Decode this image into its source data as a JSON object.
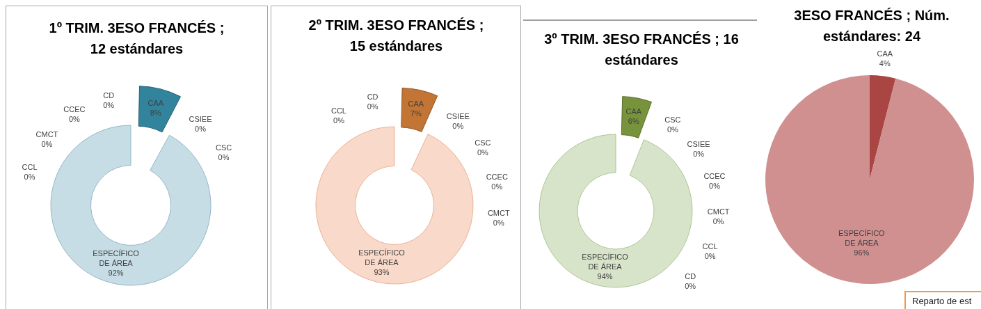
{
  "chart_data": [
    {
      "type": "donut",
      "title": "1º TRIM. 3ESO FRANCÉS ; 12 estándares",
      "categories": [
        "CAA",
        "CSIEE",
        "CSC",
        "ESPECÍFICO DE ÁREA",
        "CCL",
        "CMCT",
        "CCEC",
        "CD"
      ],
      "values": [
        8,
        0,
        0,
        92,
        0,
        0,
        0,
        0
      ],
      "colors": [
        "#31849b",
        "#c6dde5",
        "#c6dde5",
        "#c6dde5",
        "#c6dde5",
        "#c6dde5",
        "#c6dde5",
        "#c6dde5"
      ],
      "value_labels": [
        "8%",
        "0%",
        "0%",
        "92%",
        "0%",
        "0%",
        "0%",
        "0%"
      ]
    },
    {
      "type": "donut",
      "title": "2º TRIM. 3ESO FRANCÉS ; 15 estándares",
      "categories": [
        "CAA",
        "CSIEE",
        "CSC",
        "CCEC",
        "CMCT",
        "ESPECÍFICO DE ÁREA",
        "CCL",
        "CD"
      ],
      "values": [
        7,
        0,
        0,
        0,
        0,
        93,
        0,
        0
      ],
      "colors": [
        "#c27534",
        "#f9d9c9",
        "#f9d9c9",
        "#f9d9c9",
        "#f9d9c9",
        "#f9d9c9",
        "#f9d9c9",
        "#f9d9c9"
      ],
      "value_labels": [
        "7%",
        "0%",
        "0%",
        "0%",
        "0%",
        "93%",
        "0%",
        "0%"
      ]
    },
    {
      "type": "donut",
      "title": "3º TRIM. 3ESO FRANCÉS ; 16 estándares",
      "categories": [
        "CAA",
        "CSC",
        "CSIEE",
        "CCEC",
        "CMCT",
        "CCL",
        "CD",
        "ESPECÍFICO DE ÁREA"
      ],
      "values": [
        6,
        0,
        0,
        0,
        0,
        0,
        0,
        94
      ],
      "colors": [
        "#77933c",
        "#d8e4c9",
        "#d8e4c9",
        "#d8e4c9",
        "#d8e4c9",
        "#d8e4c9",
        "#d8e4c9",
        "#d8e4c9"
      ],
      "value_labels": [
        "6%",
        "0%",
        "0%",
        "0%",
        "0%",
        "0%",
        "0%",
        "94%"
      ]
    },
    {
      "type": "pie",
      "title": "3ESO FRANCÉS ; Núm. estándares: 24",
      "categories": [
        "CAA",
        "ESPECÍFICO DE ÁREA"
      ],
      "values": [
        4,
        96
      ],
      "colors": [
        "#a94644",
        "#d09090"
      ],
      "value_labels": [
        "4%",
        "96%"
      ],
      "annotations": [
        "Reparto de est"
      ]
    }
  ]
}
